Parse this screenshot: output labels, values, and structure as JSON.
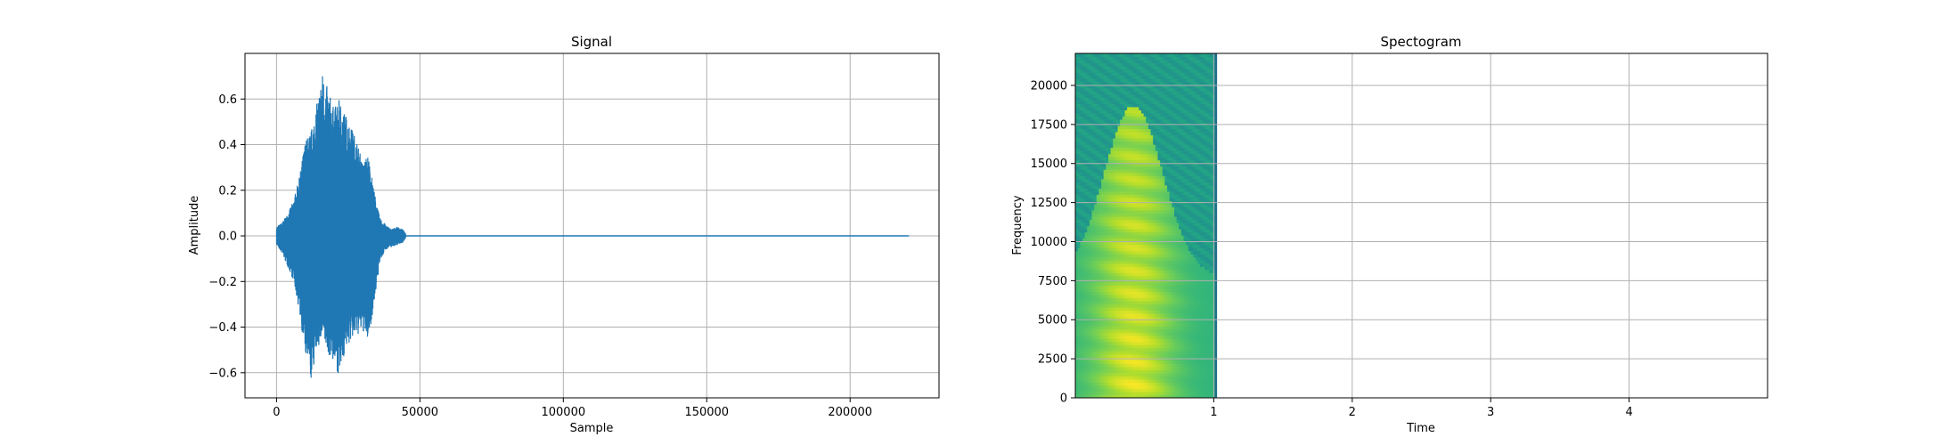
{
  "chart_data": [
    {
      "type": "line",
      "title": "Signal",
      "xlabel": "Sample",
      "ylabel": "Amplitude",
      "xlim": [
        -11000,
        231000
      ],
      "ylim": [
        -0.71,
        0.8
      ],
      "xticks": [
        0,
        50000,
        100000,
        150000,
        200000
      ],
      "xtick_labels": [
        "0",
        "50000",
        "100000",
        "150000",
        "200000"
      ],
      "yticks": [
        -0.6,
        -0.4,
        -0.2,
        0.0,
        0.2,
        0.4,
        0.6
      ],
      "ytick_labels": [
        "−0.6",
        "−0.4",
        "−0.2",
        "0.0",
        "0.2",
        "0.4",
        "0.6"
      ],
      "grid": true,
      "color": "#1f77b4",
      "series": [
        {
          "x_end": 220500,
          "signal_end": 45000,
          "envelope": [
            {
              "x": 0,
              "max": 0.04,
              "min": -0.04
            },
            {
              "x": 2000,
              "max": 0.06,
              "min": -0.08
            },
            {
              "x": 4000,
              "max": 0.1,
              "min": -0.14
            },
            {
              "x": 6000,
              "max": 0.16,
              "min": -0.2
            },
            {
              "x": 8000,
              "max": 0.26,
              "min": -0.34
            },
            {
              "x": 10000,
              "max": 0.42,
              "min": -0.52
            },
            {
              "x": 12000,
              "max": 0.46,
              "min": -0.64
            },
            {
              "x": 14000,
              "max": 0.58,
              "min": -0.5
            },
            {
              "x": 16000,
              "max": 0.72,
              "min": -0.46
            },
            {
              "x": 18000,
              "max": 0.64,
              "min": -0.52
            },
            {
              "x": 20000,
              "max": 0.56,
              "min": -0.56
            },
            {
              "x": 22000,
              "max": 0.6,
              "min": -0.62
            },
            {
              "x": 24000,
              "max": 0.54,
              "min": -0.5
            },
            {
              "x": 26000,
              "max": 0.48,
              "min": -0.46
            },
            {
              "x": 28000,
              "max": 0.42,
              "min": -0.44
            },
            {
              "x": 30000,
              "max": 0.32,
              "min": -0.42
            },
            {
              "x": 32000,
              "max": 0.36,
              "min": -0.46
            },
            {
              "x": 34000,
              "max": 0.2,
              "min": -0.3
            },
            {
              "x": 36000,
              "max": 0.08,
              "min": -0.12
            },
            {
              "x": 38000,
              "max": 0.05,
              "min": -0.06
            },
            {
              "x": 40000,
              "max": 0.03,
              "min": -0.05
            },
            {
              "x": 42000,
              "max": 0.04,
              "min": -0.04
            },
            {
              "x": 44000,
              "max": 0.03,
              "min": -0.03
            },
            {
              "x": 45000,
              "max": 0.01,
              "min": -0.01
            }
          ]
        }
      ]
    },
    {
      "type": "heatmap",
      "title": "Spectogram",
      "xlabel": "Time",
      "ylabel": "Frequency",
      "xlim": [
        0.0,
        5.0
      ],
      "ylim": [
        0,
        22050
      ],
      "xticks": [
        1,
        2,
        3,
        4
      ],
      "xtick_labels": [
        "1",
        "2",
        "3",
        "4"
      ],
      "yticks": [
        0,
        2500,
        5000,
        7500,
        10000,
        12500,
        15000,
        17500,
        20000
      ],
      "ytick_labels": [
        "0",
        "2500",
        "5000",
        "7500",
        "10000",
        "12500",
        "15000",
        "17500",
        "20000"
      ],
      "grid": true,
      "data_time_end": 1.02,
      "colormap": [
        "#440154",
        "#31688e",
        "#26828e",
        "#1f9e89",
        "#35b779",
        "#6ece58",
        "#b5de2b",
        "#fde725"
      ]
    }
  ]
}
